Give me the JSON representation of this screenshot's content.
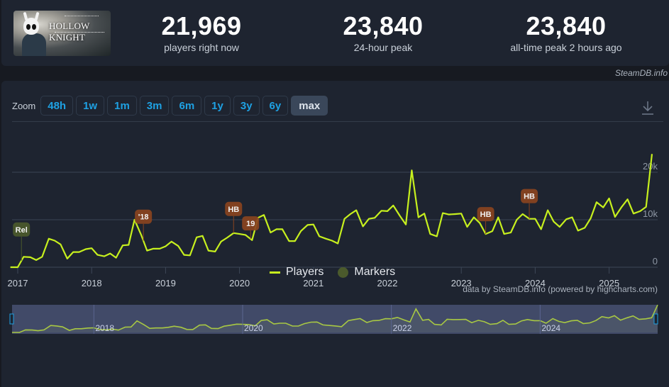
{
  "header": {
    "game_title": "HOLLOW KNIGHT",
    "stats": [
      {
        "value": "21,969",
        "label": "players right now"
      },
      {
        "value": "23,840",
        "label": "24-hour peak"
      },
      {
        "value": "23,840",
        "label": "all-time peak 2 hours ago"
      }
    ],
    "credit": "SteamDB.info"
  },
  "toolbar": {
    "zoom_label": "Zoom",
    "zoom_options": [
      "48h",
      "1w",
      "1m",
      "3m",
      "6m",
      "1y",
      "3y",
      "6y",
      "max"
    ],
    "active_zoom": "max",
    "download_icon": "download-icon"
  },
  "legend": {
    "players": "Players",
    "markers": "Markers"
  },
  "footer": {
    "credit": "data by SteamDB.info (powered by highcharts.com)"
  },
  "colors": {
    "line": "#c7f01e",
    "marker_release": "#4b5a2c",
    "marker_event": "#8a4420",
    "background": "#1e2430",
    "navigator_bg": "#3b4470",
    "accent_blue": "#1ea1e3"
  },
  "chart_data": {
    "type": "line",
    "title": "",
    "xlabel": "",
    "ylabel": "Players",
    "ylim": [
      0,
      25000
    ],
    "yticks": [
      "0",
      "10k",
      "20k"
    ],
    "xticks": [
      "2017",
      "2018",
      "2019",
      "2020",
      "2021",
      "2022",
      "2023",
      "2024",
      "2025"
    ],
    "grid": true,
    "legend_position": "bottom-center",
    "series": [
      {
        "name": "Players",
        "x_years": [
          2016.9,
          2017.0,
          2017.08,
          2017.17,
          2017.25,
          2017.33,
          2017.42,
          2017.5,
          2017.58,
          2017.67,
          2017.75,
          2017.83,
          2017.92,
          2018.0,
          2018.08,
          2018.17,
          2018.25,
          2018.33,
          2018.42,
          2018.5,
          2018.58,
          2018.67,
          2018.75,
          2018.83,
          2018.92,
          2019.0,
          2019.08,
          2019.17,
          2019.25,
          2019.33,
          2019.42,
          2019.5,
          2019.58,
          2019.67,
          2019.75,
          2019.83,
          2019.92,
          2020.0,
          2020.08,
          2020.17,
          2020.25,
          2020.33,
          2020.42,
          2020.5,
          2020.58,
          2020.67,
          2020.75,
          2020.83,
          2020.92,
          2021.0,
          2021.08,
          2021.17,
          2021.25,
          2021.33,
          2021.42,
          2021.5,
          2021.58,
          2021.67,
          2021.75,
          2021.83,
          2021.92,
          2022.0,
          2022.08,
          2022.17,
          2022.25,
          2022.33,
          2022.42,
          2022.5,
          2022.58,
          2022.67,
          2022.75,
          2022.83,
          2022.92,
          2023.0,
          2023.08,
          2023.17,
          2023.25,
          2023.33,
          2023.42,
          2023.5,
          2023.58,
          2023.67,
          2023.75,
          2023.83,
          2023.92,
          2024.0,
          2024.08,
          2024.17,
          2024.25,
          2024.33,
          2024.42,
          2024.5,
          2024.58,
          2024.67,
          2024.75,
          2024.83,
          2024.92,
          2025.0,
          2025.08,
          2025.17,
          2025.25,
          2025.33,
          2025.42,
          2025.5,
          2025.58
        ],
        "values": [
          0,
          0,
          2200,
          2100,
          1500,
          2200,
          6000,
          5600,
          4800,
          1800,
          3200,
          3200,
          3800,
          4000,
          2600,
          2300,
          2900,
          2000,
          4600,
          4700,
          10000,
          6800,
          3500,
          3900,
          3900,
          4400,
          5400,
          4500,
          2600,
          2500,
          6300,
          6600,
          3500,
          3300,
          5400,
          6200,
          7200,
          7000,
          6800,
          5700,
          10400,
          11000,
          7300,
          8000,
          8000,
          5500,
          5500,
          7600,
          8900,
          9000,
          6500,
          6000,
          5600,
          5000,
          10200,
          11200,
          12000,
          8600,
          10200,
          10400,
          11900,
          11800,
          13000,
          10800,
          9000,
          20400,
          10500,
          11300,
          7000,
          6500,
          11400,
          11100,
          11200,
          11300,
          8500,
          10500,
          9300,
          7000,
          7600,
          10500,
          7000,
          7300,
          10000,
          11200,
          10200,
          10200,
          8000,
          12000,
          9600,
          8500,
          10100,
          10500,
          7700,
          8300,
          10300,
          13700,
          12600,
          14500,
          10600,
          12700,
          14300,
          11300,
          11800,
          12700,
          23840
        ]
      }
    ],
    "markers": [
      {
        "label": "Rel",
        "x_year": 2017.05,
        "type": "release"
      },
      {
        "label": "'18",
        "x_year": 2018.7,
        "type": "event"
      },
      {
        "label": "HB",
        "x_year": 2019.92,
        "type": "event"
      },
      {
        "label": "19",
        "x_year": 2020.15,
        "type": "event"
      },
      {
        "label": "HB",
        "x_year": 2023.33,
        "type": "event"
      },
      {
        "label": "HB",
        "x_year": 2023.92,
        "type": "event"
      }
    ],
    "navigator": {
      "xticks": [
        "2018",
        "2020",
        "2022",
        "2024"
      ]
    }
  }
}
